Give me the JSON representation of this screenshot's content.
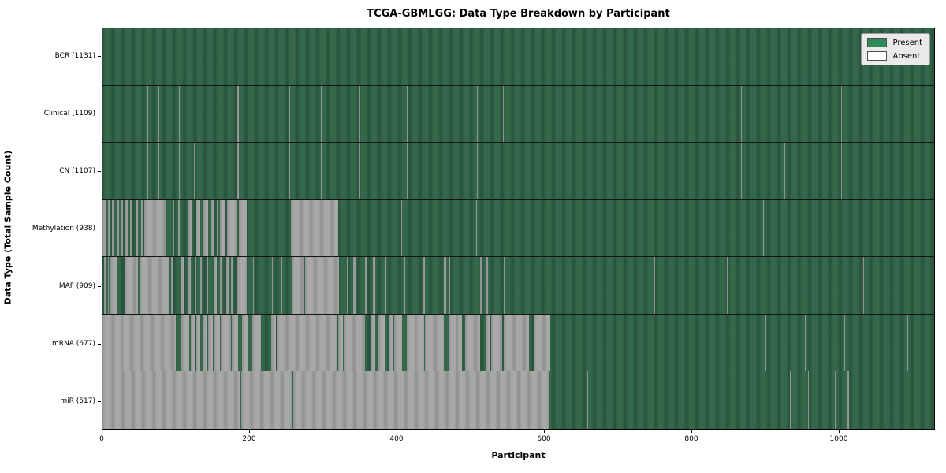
{
  "title": "TCGA-GBMLGG: Data Type Breakdown by Participant",
  "xlabel": "Participant",
  "ylabel": "Data Type (Total Sample Count)",
  "legend": {
    "present_label": "Present",
    "absent_label": "Absent"
  },
  "colors": {
    "present_swatch": "#2e8b57",
    "present_light": "#35684a",
    "present_dark": "#27523c",
    "absent_swatch": "#ffffff",
    "absent_light": "#a8a8a8",
    "absent_dark": "#8f9090",
    "legend_bg": "#eaeaea"
  },
  "chart_data": {
    "type": "heatmap",
    "title": "TCGA-GBMLGG: Data Type Breakdown by Participant",
    "xlabel": "Participant",
    "ylabel": "Data Type (Total Sample Count)",
    "legend_position": "upper right",
    "x_ticks": [
      0,
      200,
      400,
      600,
      800,
      1000
    ],
    "x_max": 1131,
    "rows": [
      {
        "name": "BCR",
        "label": "BCR (1131)",
        "total": 1131,
        "absent_segments": []
      },
      {
        "name": "Clinical",
        "label": "Clinical (1109)",
        "total": 1109,
        "absent_segments": [
          [
            61,
            62
          ],
          [
            76,
            77
          ],
          [
            95,
            96
          ],
          [
            104,
            105
          ],
          [
            183,
            186
          ],
          [
            254,
            255
          ],
          [
            297,
            298
          ],
          [
            350,
            351
          ],
          [
            414,
            415
          ],
          [
            509,
            510
          ],
          [
            545,
            546
          ],
          [
            868,
            869
          ],
          [
            1004,
            1005
          ]
        ]
      },
      {
        "name": "CN",
        "label": "CN (1107)",
        "total": 1107,
        "absent_segments": [
          [
            61,
            62
          ],
          [
            76,
            77
          ],
          [
            95,
            96
          ],
          [
            104,
            105
          ],
          [
            124,
            125
          ],
          [
            183,
            186
          ],
          [
            254,
            255
          ],
          [
            297,
            298
          ],
          [
            350,
            351
          ],
          [
            414,
            415
          ],
          [
            509,
            510
          ],
          [
            868,
            869
          ],
          [
            927,
            928
          ],
          [
            1004,
            1005
          ]
        ]
      },
      {
        "name": "Methylation",
        "label": "Methylation (938)",
        "total": 938,
        "absent_segments": [
          [
            0,
            4
          ],
          [
            7,
            10
          ],
          [
            13,
            16
          ],
          [
            20,
            23
          ],
          [
            26,
            28
          ],
          [
            31,
            34
          ],
          [
            38,
            41
          ],
          [
            45,
            48
          ],
          [
            52,
            55
          ],
          [
            57,
            87
          ],
          [
            96,
            98
          ],
          [
            103,
            105
          ],
          [
            110,
            112
          ],
          [
            117,
            122
          ],
          [
            126,
            133
          ],
          [
            137,
            144
          ],
          [
            148,
            152
          ],
          [
            155,
            158
          ],
          [
            160,
            166
          ],
          [
            169,
            182
          ],
          [
            185,
            196
          ],
          [
            256,
            321
          ],
          [
            406,
            407
          ],
          [
            508,
            509
          ],
          [
            898,
            899
          ]
        ]
      },
      {
        "name": "MAF",
        "label": "MAF (909)",
        "total": 909,
        "absent_segments": [
          [
            2,
            4
          ],
          [
            7,
            9
          ],
          [
            11,
            20
          ],
          [
            30,
            48
          ],
          [
            50,
            90
          ],
          [
            93,
            97
          ],
          [
            106,
            110
          ],
          [
            117,
            120
          ],
          [
            125,
            127
          ],
          [
            133,
            135
          ],
          [
            141,
            144
          ],
          [
            151,
            155
          ],
          [
            160,
            163
          ],
          [
            168,
            171
          ],
          [
            175,
            178
          ],
          [
            183,
            196
          ],
          [
            205,
            206
          ],
          [
            230,
            231
          ],
          [
            243,
            244
          ],
          [
            257,
            274
          ],
          [
            276,
            322
          ],
          [
            332,
            335
          ],
          [
            341,
            344
          ],
          [
            357,
            360
          ],
          [
            368,
            371
          ],
          [
            384,
            386
          ],
          [
            394,
            396
          ],
          [
            409,
            412
          ],
          [
            424,
            426
          ],
          [
            436,
            438
          ],
          [
            464,
            467
          ],
          [
            471,
            473
          ],
          [
            514,
            517
          ],
          [
            522,
            524
          ],
          [
            546,
            548
          ],
          [
            556,
            558
          ],
          [
            750,
            751
          ],
          [
            849,
            850
          ],
          [
            1034,
            1035
          ]
        ]
      },
      {
        "name": "mRNA",
        "label": "mRNA (677)",
        "total": 677,
        "absent_segments": [
          [
            0,
            25
          ],
          [
            26,
            100
          ],
          [
            107,
            118
          ],
          [
            120,
            125
          ],
          [
            126,
            133
          ],
          [
            136,
            143
          ],
          [
            144,
            150
          ],
          [
            151,
            160
          ],
          [
            161,
            175
          ],
          [
            176,
            184
          ],
          [
            190,
            198
          ],
          [
            204,
            215
          ],
          [
            229,
            236
          ],
          [
            237,
            318
          ],
          [
            321,
            327
          ],
          [
            328,
            357
          ],
          [
            364,
            371
          ],
          [
            375,
            384
          ],
          [
            389,
            396
          ],
          [
            397,
            407
          ],
          [
            414,
            425
          ],
          [
            426,
            437
          ],
          [
            438,
            464
          ],
          [
            471,
            480
          ],
          [
            481,
            489
          ],
          [
            493,
            514
          ],
          [
            521,
            527
          ],
          [
            528,
            543
          ],
          [
            546,
            580
          ],
          [
            586,
            609
          ],
          [
            623,
            624
          ],
          [
            677,
            678
          ],
          [
            902,
            903
          ],
          [
            955,
            956
          ],
          [
            1009,
            1010
          ],
          [
            1095,
            1096
          ]
        ]
      },
      {
        "name": "miR",
        "label": "miR (517)",
        "total": 517,
        "absent_segments": [
          [
            0,
            186
          ],
          [
            189,
            257
          ],
          [
            259,
            607
          ],
          [
            659,
            660
          ],
          [
            709,
            710
          ],
          [
            935,
            936
          ],
          [
            960,
            961
          ],
          [
            996,
            997
          ],
          [
            1013,
            1015
          ]
        ]
      }
    ]
  }
}
